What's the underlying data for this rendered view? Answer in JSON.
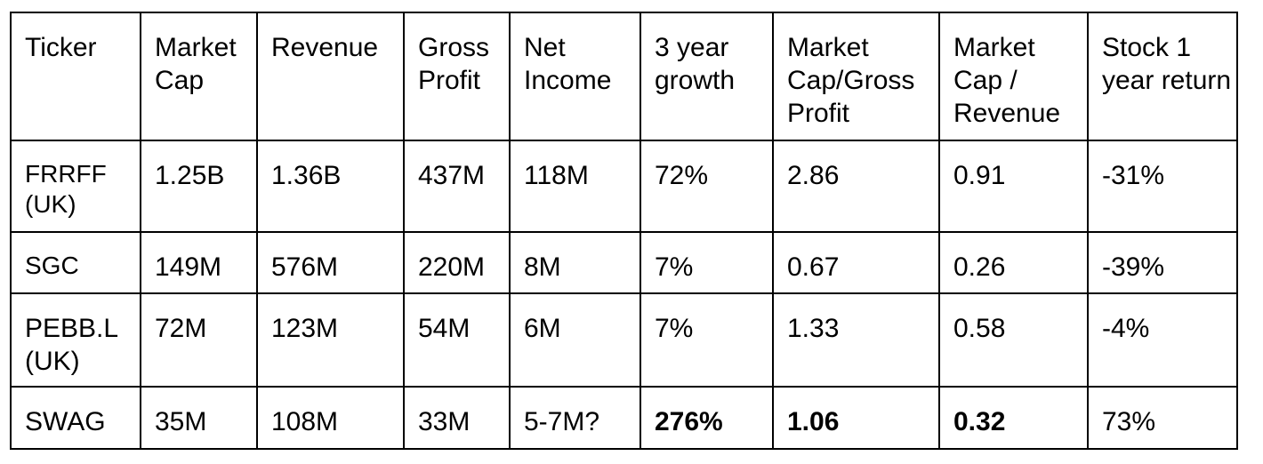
{
  "table": {
    "headers": [
      "Ticker",
      "Market Cap",
      "Revenue",
      "Gross Profit",
      "Net Income",
      "3 year growth",
      "Market Cap/Gross Profit",
      "Market Cap / Revenue",
      "Stock 1 year return"
    ],
    "rows": [
      [
        "FRRFF (UK)",
        "1.25B",
        "1.36B",
        "437M",
        "118M",
        "72%",
        "2.86",
        "0.91",
        "-31%"
      ],
      [
        "SGC",
        "149M",
        "576M",
        "220M",
        "8M",
        "7%",
        "0.67",
        "0.26",
        "-39%"
      ],
      [
        "PEBB.L (UK)",
        "72M",
        "123M",
        "54M",
        "6M",
        "7%",
        "1.33",
        "0.58",
        "-4%"
      ],
      [
        "SWAG",
        "35M",
        "108M",
        "33M",
        "5-7M?",
        "276%",
        "1.06",
        "0.32",
        "73%"
      ]
    ],
    "bold_cells": [
      "rows.3.5",
      "rows.3.6",
      "rows.3.7"
    ]
  }
}
